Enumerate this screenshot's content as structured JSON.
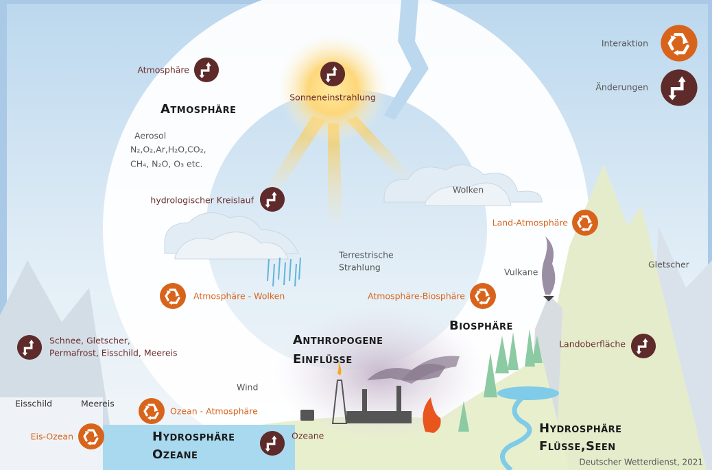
{
  "legend": {
    "interaction": "Interaktion",
    "change": "Änderungen"
  },
  "atmosphere": {
    "icon_label": "Atmosphäre",
    "heading": "Atmosphäre",
    "composition": [
      "Aerosol",
      "N₂,O₂,Ar,H₂O,CO₂,",
      "CH₄, N₂O, O₃ etc."
    ]
  },
  "labels": {
    "solar": "Sonneneinstrahlung",
    "hydro_cycle": "hydrologischer Kreislauf",
    "clouds": "Wolken",
    "land_atmosphere": "Land-Atmosphäre",
    "glacier": "Gletscher",
    "terrestrial": [
      "Terrestrische",
      "Strahlung"
    ],
    "volcanoes": "Vulkane",
    "atmosphere_clouds": "Atmosphäre - Wolken",
    "atmosphere_biosphere": "Atmosphäre-Biosphäre",
    "cryosphere": [
      "Schnee, Gletscher,",
      "Permafrost, Eisschild, Meereis"
    ],
    "land_surface": "Landoberfläche",
    "wind": "Wind",
    "ice_sheet": "Eisschild",
    "sea_ice": "Meereis",
    "ocean_atmosphere": "Ozean - Atmosphäre",
    "ice_ocean": "Eis-Ozean",
    "oceans": "Ozeane"
  },
  "headings": {
    "biosphere": "Biosphäre",
    "anthropogenic": [
      "Anthropogene",
      "Einflüsse"
    ],
    "hydro_oceans": [
      "Hydrosphäre",
      "Ozeane"
    ],
    "hydro_rivers": [
      "Hydrosphäre",
      "Flüsse,Seen"
    ]
  },
  "credit": "Deutscher Wetterdienst, 2021"
}
